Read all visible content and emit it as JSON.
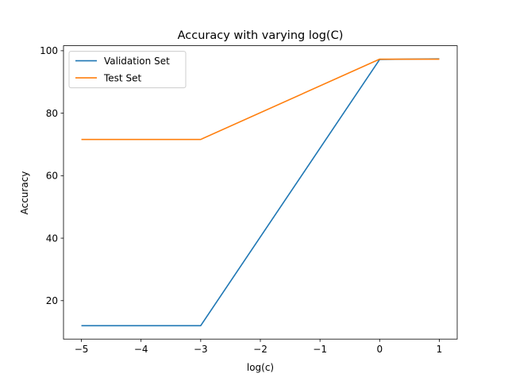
{
  "chart_data": {
    "type": "line",
    "title": "Accuracy with varying log(C)",
    "xlabel": "log(c)",
    "ylabel": "Accuracy",
    "x": [
      -5,
      -3,
      0,
      1
    ],
    "series": [
      {
        "name": "Validation Set",
        "color": "#1f77b4",
        "values": [
          12.0,
          12.0,
          97.2,
          97.4
        ]
      },
      {
        "name": "Test Set",
        "color": "#ff7f0e",
        "values": [
          71.6,
          71.6,
          97.3,
          97.3
        ]
      }
    ],
    "xlim": [
      -5.3,
      1.3
    ],
    "ylim": [
      7.7,
      101.6
    ],
    "xticks": [
      -5,
      -4,
      -3,
      -2,
      -1,
      0,
      1
    ],
    "xtick_labels": [
      "−5",
      "−4",
      "−3",
      "−2",
      "−1",
      "0",
      "1"
    ],
    "yticks": [
      20,
      40,
      60,
      80,
      100
    ],
    "ytick_labels": [
      "20",
      "40",
      "60",
      "80",
      "100"
    ],
    "grid": false,
    "legend_position": "top-left"
  }
}
